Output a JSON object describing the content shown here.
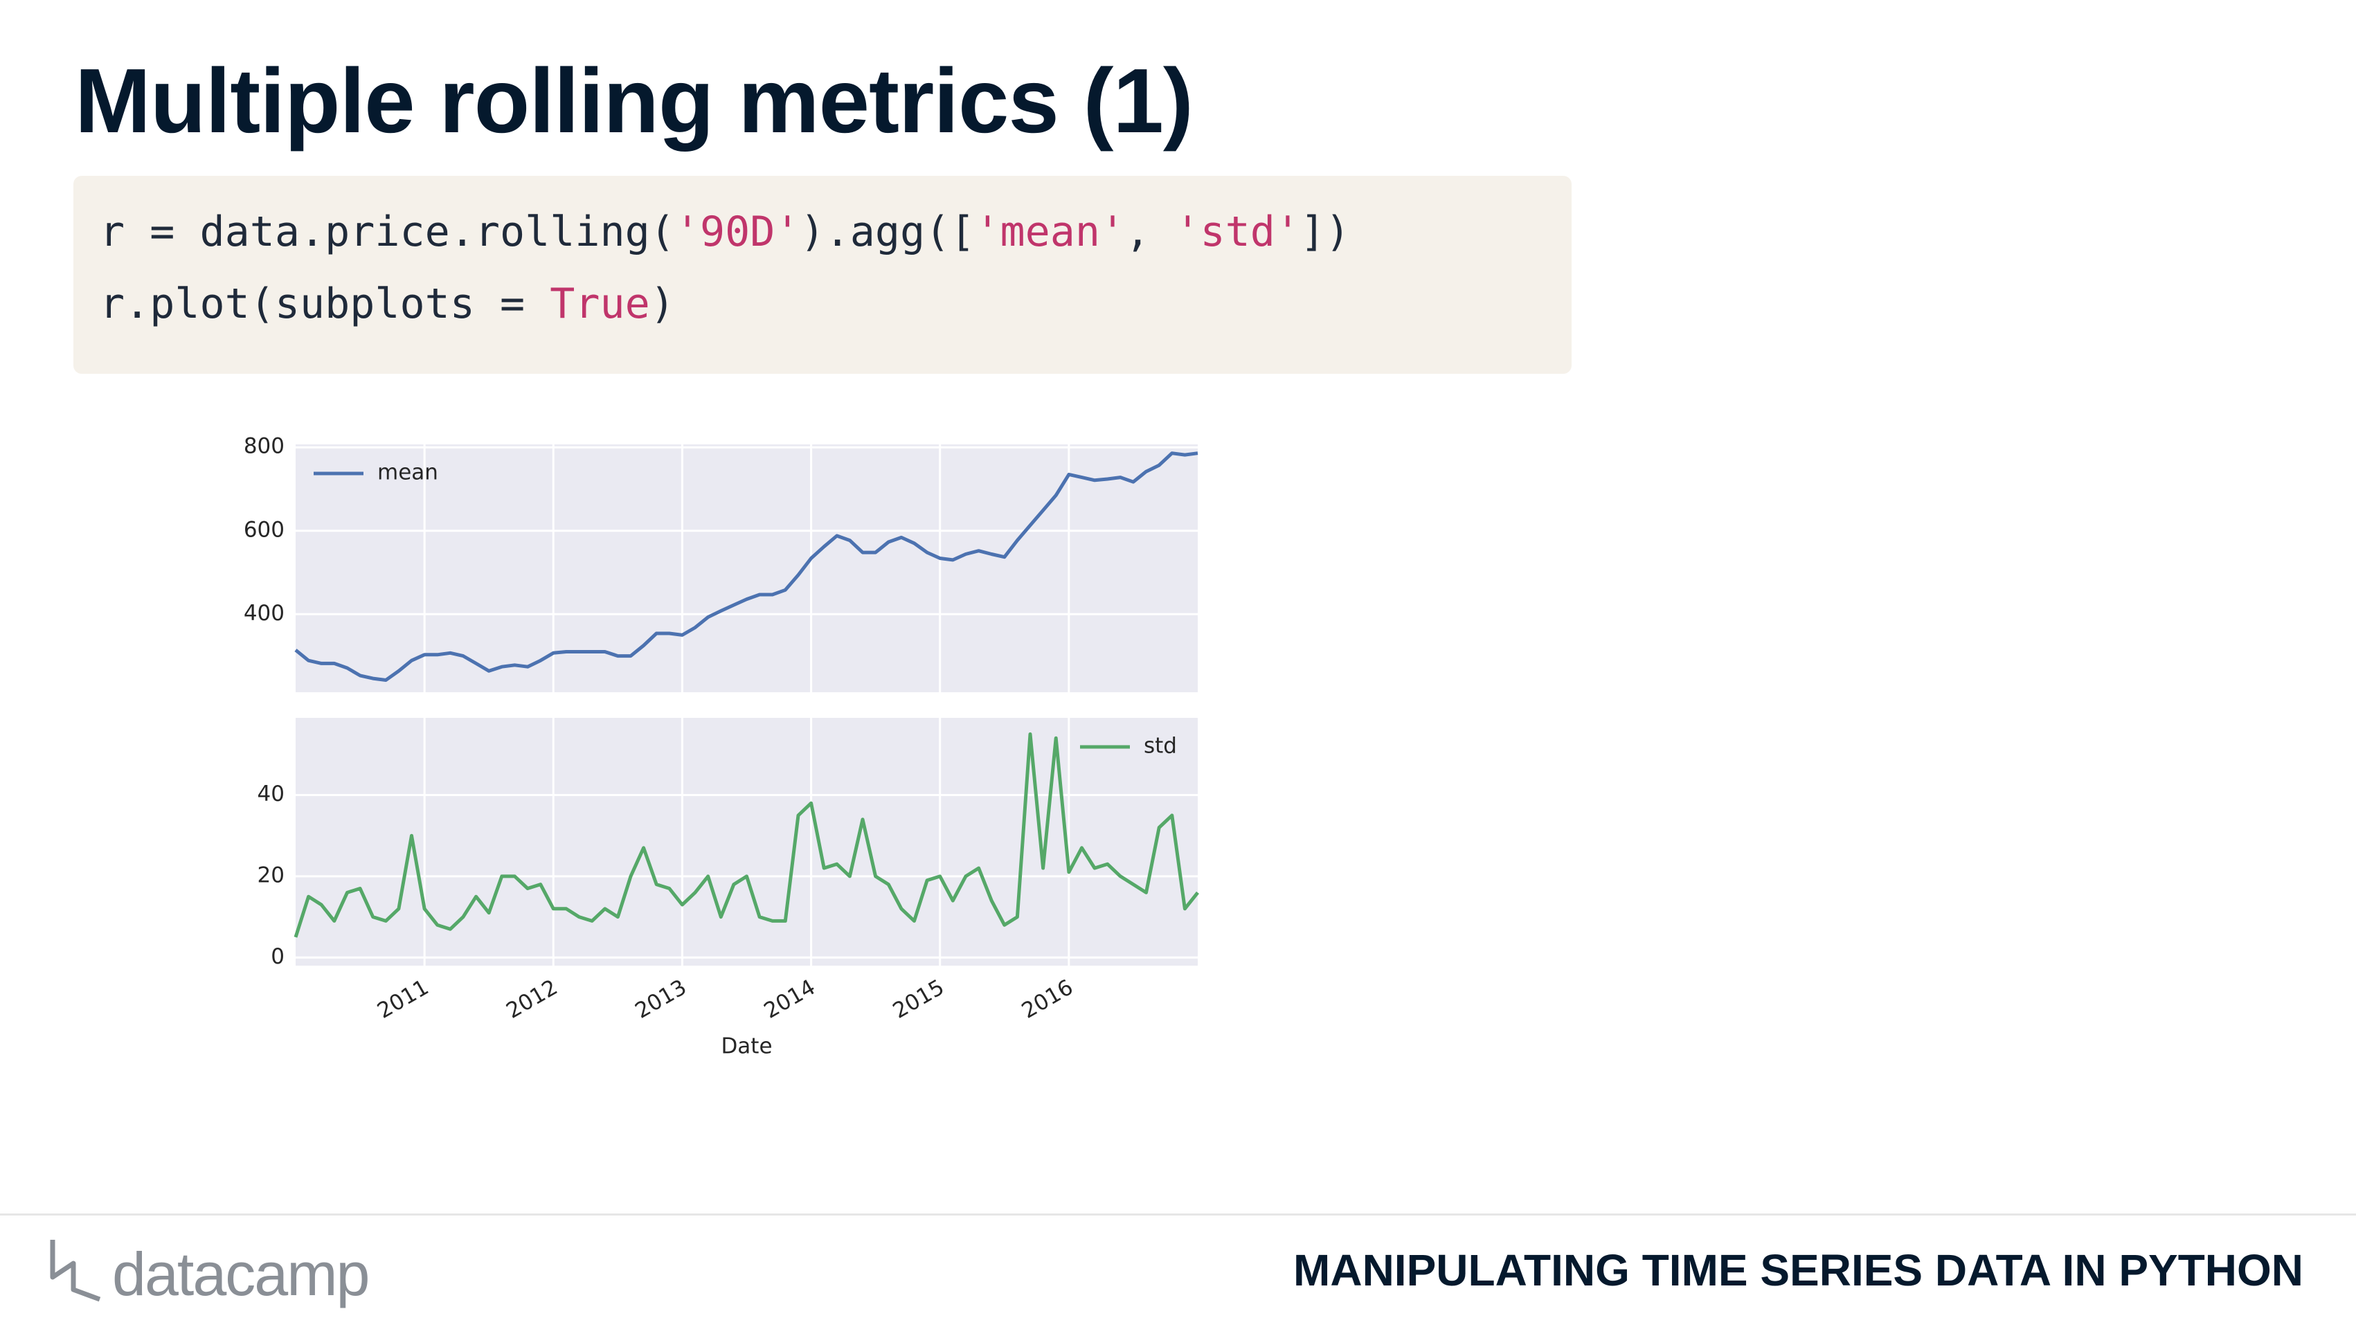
{
  "header": {
    "title": "Multiple rolling metrics (1)"
  },
  "code": {
    "lines": [
      [
        {
          "text": "r = data.price.rolling(",
          "color": "#1f2a3a"
        },
        {
          "text": "'90D'",
          "color": "#c0356b"
        },
        {
          "text": ").agg([",
          "color": "#1f2a3a"
        },
        {
          "text": "'mean'",
          "color": "#c0356b"
        },
        {
          "text": ", ",
          "color": "#1f2a3a"
        },
        {
          "text": "'std'",
          "color": "#c0356b"
        },
        {
          "text": "])",
          "color": "#1f2a3a"
        }
      ],
      [
        {
          "text": "r.plot(subplots = ",
          "color": "#1f2a3a"
        },
        {
          "text": "True",
          "color": "#c0356b"
        },
        {
          "text": ")",
          "color": "#1f2a3a"
        }
      ]
    ]
  },
  "chart_data": [
    {
      "type": "line",
      "legend": "upper left",
      "grid": true,
      "x": [
        2010.0,
        2010.1,
        2010.2,
        2010.3,
        2010.4,
        2010.5,
        2010.6,
        2010.7,
        2010.8,
        2010.9,
        2011.0,
        2011.1,
        2011.2,
        2011.3,
        2011.4,
        2011.5,
        2011.6,
        2011.7,
        2011.8,
        2011.9,
        2012.0,
        2012.1,
        2012.2,
        2012.3,
        2012.4,
        2012.5,
        2012.6,
        2012.7,
        2012.8,
        2012.9,
        2013.0,
        2013.1,
        2013.2,
        2013.3,
        2013.4,
        2013.5,
        2013.6,
        2013.7,
        2013.8,
        2013.9,
        2014.0,
        2014.1,
        2014.2,
        2014.3,
        2014.4,
        2014.5,
        2014.6,
        2014.7,
        2014.8,
        2014.9,
        2015.0,
        2015.1,
        2015.2,
        2015.3,
        2015.4,
        2015.5,
        2015.6,
        2015.7,
        2015.8,
        2015.9,
        2016.0,
        2016.1,
        2016.2,
        2016.3,
        2016.4,
        2016.5,
        2016.6,
        2016.7,
        2016.8,
        2016.9,
        2017.0
      ],
      "series": [
        {
          "name": "mean",
          "color": "#4c72b0",
          "values": [
            314,
            289,
            282,
            282,
            271,
            253,
            246,
            242,
            264,
            289,
            303,
            303,
            307,
            300,
            282,
            264,
            274,
            278,
            274,
            289,
            307,
            310,
            310,
            310,
            310,
            300,
            300,
            325,
            354,
            354,
            350,
            368,
            393,
            408,
            422,
            436,
            447,
            447,
            458,
            494,
            534,
            562,
            588,
            577,
            548,
            548,
            573,
            584,
            570,
            548,
            534,
            530,
            544,
            552,
            544,
            537,
            577,
            613,
            649,
            685,
            735,
            728,
            721,
            724,
            728,
            717,
            742,
            757,
            786,
            782,
            786
          ]
        }
      ],
      "xlim": [
        2010,
        2017
      ],
      "xticks": [
        2011,
        2012,
        2013,
        2014,
        2015,
        2016
      ],
      "ylim": [
        213,
        807
      ],
      "yticks": [
        400,
        600,
        800
      ]
    },
    {
      "type": "line",
      "legend": "upper right",
      "grid": true,
      "xlabel": "Date",
      "x": [
        2010.0,
        2010.1,
        2010.2,
        2010.3,
        2010.4,
        2010.5,
        2010.6,
        2010.7,
        2010.8,
        2010.9,
        2011.0,
        2011.1,
        2011.2,
        2011.3,
        2011.4,
        2011.5,
        2011.6,
        2011.7,
        2011.8,
        2011.9,
        2012.0,
        2012.1,
        2012.2,
        2012.3,
        2012.4,
        2012.5,
        2012.6,
        2012.7,
        2012.8,
        2012.9,
        2013.0,
        2013.1,
        2013.2,
        2013.3,
        2013.4,
        2013.5,
        2013.6,
        2013.7,
        2013.8,
        2013.9,
        2014.0,
        2014.1,
        2014.2,
        2014.3,
        2014.4,
        2014.5,
        2014.6,
        2014.7,
        2014.8,
        2014.9,
        2015.0,
        2015.1,
        2015.2,
        2015.3,
        2015.4,
        2015.5,
        2015.6,
        2015.7,
        2015.8,
        2015.9,
        2016.0,
        2016.1,
        2016.2,
        2016.3,
        2016.4,
        2016.5,
        2016.6,
        2016.7,
        2016.8,
        2016.9,
        2017.0
      ],
      "series": [
        {
          "name": "std",
          "color": "#55a868",
          "values": [
            5,
            15,
            13,
            9,
            16,
            17,
            10,
            9,
            12,
            30,
            12,
            8,
            7,
            10,
            15,
            11,
            20,
            20,
            17,
            18,
            12,
            12,
            10,
            9,
            12,
            10,
            20,
            27,
            18,
            17,
            13,
            16,
            20,
            10,
            18,
            20,
            10,
            9,
            9,
            35,
            38,
            22,
            23,
            20,
            34,
            20,
            18,
            12,
            9,
            19,
            20,
            14,
            20,
            22,
            14,
            8,
            10,
            55,
            22,
            54,
            21,
            27,
            22,
            23,
            20,
            18,
            16,
            32,
            35,
            12,
            16
          ]
        }
      ],
      "xlim": [
        2010,
        2017
      ],
      "xticks": [
        2011,
        2012,
        2013,
        2014,
        2015,
        2016
      ],
      "ylim": [
        -2,
        59
      ],
      "yticks": [
        0,
        20,
        40
      ]
    }
  ],
  "footer": {
    "logo": "datacamp",
    "course": "MANIPULATING TIME SERIES DATA IN PYTHON"
  }
}
